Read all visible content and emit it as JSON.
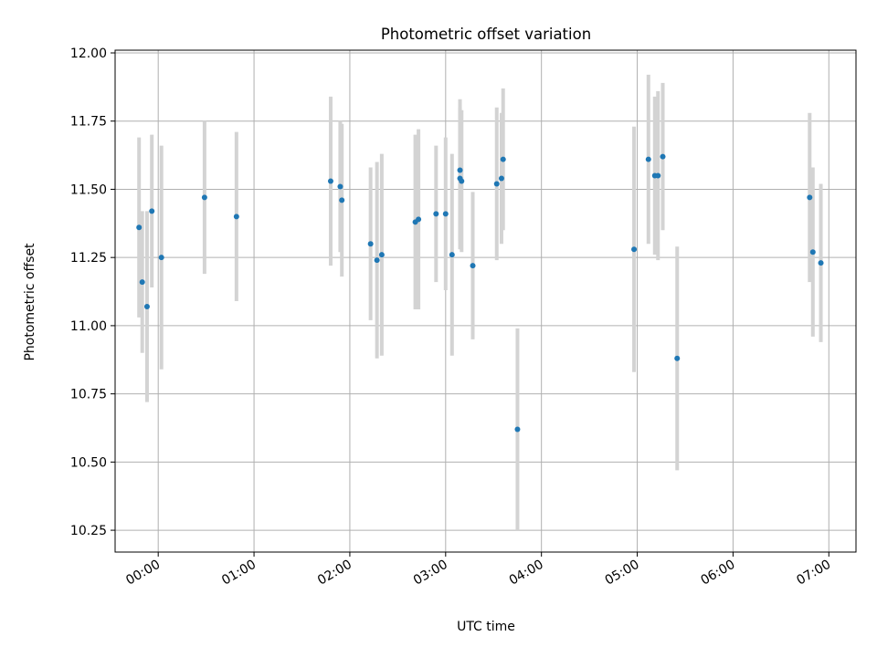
{
  "chart_data": {
    "type": "scatter",
    "title": "Photometric offset variation",
    "xlabel": "UTC time",
    "ylabel": "Photometric offset",
    "x_ticks": [
      "00:00",
      "01:00",
      "02:00",
      "03:00",
      "04:00",
      "05:00",
      "06:00",
      "07:00"
    ],
    "y_ticks": [
      "10.25",
      "10.50",
      "10.75",
      "11.00",
      "11.25",
      "11.50",
      "11.75",
      "12.00"
    ],
    "xlim": [
      "23:33",
      "07:17"
    ],
    "ylim": [
      10.17,
      12.01
    ],
    "grid": true,
    "error_bar_color": "#d3d3d3",
    "point_color": "#1f77b4",
    "points": [
      {
        "x": "23:48",
        "y": 11.36,
        "err": 0.33
      },
      {
        "x": "23:50",
        "y": 11.16,
        "err": 0.26
      },
      {
        "x": "23:53",
        "y": 11.07,
        "err": 0.35
      },
      {
        "x": "23:56",
        "y": 11.42,
        "err": 0.28
      },
      {
        "x": "00:02",
        "y": 11.25,
        "err": 0.41
      },
      {
        "x": "00:29",
        "y": 11.47,
        "err": 0.28
      },
      {
        "x": "00:49",
        "y": 11.4,
        "err": 0.31
      },
      {
        "x": "01:48",
        "y": 11.53,
        "err": 0.31
      },
      {
        "x": "01:54",
        "y": 11.51,
        "err": 0.24
      },
      {
        "x": "01:55",
        "y": 11.46,
        "err": 0.28
      },
      {
        "x": "02:13",
        "y": 11.3,
        "err": 0.28
      },
      {
        "x": "02:17",
        "y": 11.24,
        "err": 0.36
      },
      {
        "x": "02:20",
        "y": 11.26,
        "err": 0.37
      },
      {
        "x": "02:41",
        "y": 11.38,
        "err": 0.32
      },
      {
        "x": "02:43",
        "y": 11.39,
        "err": 0.33
      },
      {
        "x": "02:54",
        "y": 11.41,
        "err": 0.25
      },
      {
        "x": "03:00",
        "y": 11.41,
        "err": 0.28
      },
      {
        "x": "03:04",
        "y": 11.26,
        "err": 0.37
      },
      {
        "x": "03:09",
        "y": 11.57,
        "err": 0.26
      },
      {
        "x": "03:09",
        "y": 11.54,
        "err": 0.26
      },
      {
        "x": "03:10",
        "y": 11.53,
        "err": 0.26
      },
      {
        "x": "03:17",
        "y": 11.22,
        "err": 0.27
      },
      {
        "x": "03:32",
        "y": 11.52,
        "err": 0.28
      },
      {
        "x": "03:35",
        "y": 11.54,
        "err": 0.24
      },
      {
        "x": "03:36",
        "y": 11.61,
        "err": 0.26
      },
      {
        "x": "03:45",
        "y": 10.62,
        "err": 0.37
      },
      {
        "x": "04:58",
        "y": 11.28,
        "err": 0.45
      },
      {
        "x": "05:07",
        "y": 11.61,
        "err": 0.31
      },
      {
        "x": "05:11",
        "y": 11.55,
        "err": 0.29
      },
      {
        "x": "05:13",
        "y": 11.55,
        "err": 0.31
      },
      {
        "x": "05:16",
        "y": 11.62,
        "err": 0.27
      },
      {
        "x": "05:25",
        "y": 10.88,
        "err": 0.41
      },
      {
        "x": "06:48",
        "y": 11.47,
        "err": 0.31
      },
      {
        "x": "06:50",
        "y": 11.27,
        "err": 0.31
      },
      {
        "x": "06:55",
        "y": 11.23,
        "err": 0.29
      }
    ]
  }
}
